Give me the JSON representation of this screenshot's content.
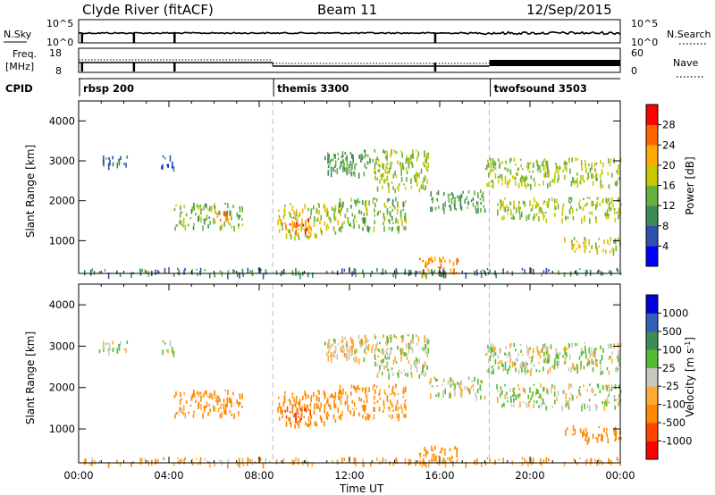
{
  "header": {
    "station": "Clyde River (fitACF)",
    "beam": "Beam 11",
    "date": "12/Sep/2015"
  },
  "panels": {
    "nsky": {
      "left_label": "N.Sky",
      "right_label": "N.Search",
      "left_ticks": [
        "10^5",
        "10^0"
      ],
      "right_ticks": [
        "10^5",
        "10^0"
      ],
      "legend_line": "dotted"
    },
    "freq": {
      "left_label": "Freq.",
      "left_unit": "[MHz]",
      "right_label": "Nave",
      "left_ticks": [
        "18",
        "8"
      ],
      "right_ticks": [
        "60",
        "0"
      ],
      "legend_line": "dotted"
    },
    "cpid": {
      "label": "CPID",
      "segments": [
        {
          "name": "rbsp 200",
          "start_hour": 0.0
        },
        {
          "name": "themis 3300",
          "start_hour": 8.6
        },
        {
          "name": "twofsound 3503",
          "start_hour": 18.2
        }
      ]
    }
  },
  "time_axis": {
    "label": "Time UT",
    "ticks": [
      "00:00",
      "04:00",
      "08:00",
      "12:00",
      "16:00",
      "20:00",
      "00:00"
    ],
    "start_hour": 0,
    "end_hour": 24
  },
  "power_panel": {
    "ylabel": "Slant Range [km]",
    "yticks": [
      "1000",
      "2000",
      "3000",
      "4000"
    ],
    "colorbar_label": "Power [dB]",
    "colorbar_ticks": [
      "4",
      "8",
      "12",
      "16",
      "20",
      "24",
      "28"
    ],
    "colors": [
      "#0000ff",
      "#3050b0",
      "#3c8c5a",
      "#6ab03c",
      "#c8c800",
      "#ffaa00",
      "#ff6600",
      "#ff0000"
    ]
  },
  "velocity_panel": {
    "ylabel": "Slant Range [km]",
    "yticks": [
      "1000",
      "2000",
      "3000",
      "4000"
    ],
    "colorbar_label": "Velocity [m s^-1]",
    "colorbar_ticks": [
      "-1000",
      "-500",
      "-100",
      "-25",
      "25",
      "100",
      "500",
      "1000"
    ],
    "colors": [
      "#ff0000",
      "#ff4400",
      "#ff8800",
      "#ffaa33",
      "#c8c8c0",
      "#55bb33",
      "#3c8c5a",
      "#3060b8",
      "#0000dd"
    ]
  },
  "chart_data": {
    "type": "heatmap",
    "x_range_hours": [
      0,
      24
    ],
    "y_range_km": [
      180,
      4500
    ],
    "cpid_change_hours": [
      8.6,
      18.2
    ],
    "regions": [
      {
        "t0": 0.8,
        "t1": 2.2,
        "r0": 2900,
        "r1": 3150,
        "power": 8,
        "velocity": 20
      },
      {
        "t0": 3.6,
        "t1": 4.2,
        "r0": 2850,
        "r1": 3150,
        "power": 6,
        "velocity": 20
      },
      {
        "t0": 4.2,
        "t1": 7.3,
        "r0": 1350,
        "r1": 1950,
        "power": 14,
        "velocity": -150
      },
      {
        "t0": 6.0,
        "t1": 6.8,
        "r0": 1500,
        "r1": 1800,
        "power": 24,
        "velocity": -200
      },
      {
        "t0": 8.8,
        "t1": 11.5,
        "r0": 1100,
        "r1": 1950,
        "power": 18,
        "velocity": -400
      },
      {
        "t0": 9.1,
        "t1": 10.3,
        "r0": 1250,
        "r1": 1600,
        "power": 26,
        "velocity": -700
      },
      {
        "t0": 10.8,
        "t1": 13.0,
        "r0": 2700,
        "r1": 3300,
        "power": 12,
        "velocity": -30
      },
      {
        "t0": 11.5,
        "t1": 14.5,
        "r0": 1300,
        "r1": 2100,
        "power": 14,
        "velocity": -120
      },
      {
        "t0": 13.0,
        "t1": 15.5,
        "r0": 2300,
        "r1": 3300,
        "power": 16,
        "velocity": 10
      },
      {
        "t0": 15.0,
        "t1": 16.8,
        "r0": 200,
        "r1": 600,
        "power": 24,
        "velocity": -150
      },
      {
        "t0": 15.5,
        "t1": 18.0,
        "r0": 1800,
        "r1": 2300,
        "power": 12,
        "velocity": 10
      },
      {
        "t0": 18.0,
        "t1": 24.0,
        "r0": 2400,
        "r1": 3100,
        "power": 16,
        "velocity": 10
      },
      {
        "t0": 18.5,
        "t1": 24.0,
        "r0": 1550,
        "r1": 2100,
        "power": 16,
        "velocity": 10
      },
      {
        "t0": 21.5,
        "t1": 24.0,
        "r0": 750,
        "r1": 1100,
        "power": 18,
        "velocity": -300
      },
      {
        "t0": 0.0,
        "t1": 24.0,
        "r0": 180,
        "r1": 320,
        "power": 10,
        "velocity": -80
      }
    ]
  }
}
